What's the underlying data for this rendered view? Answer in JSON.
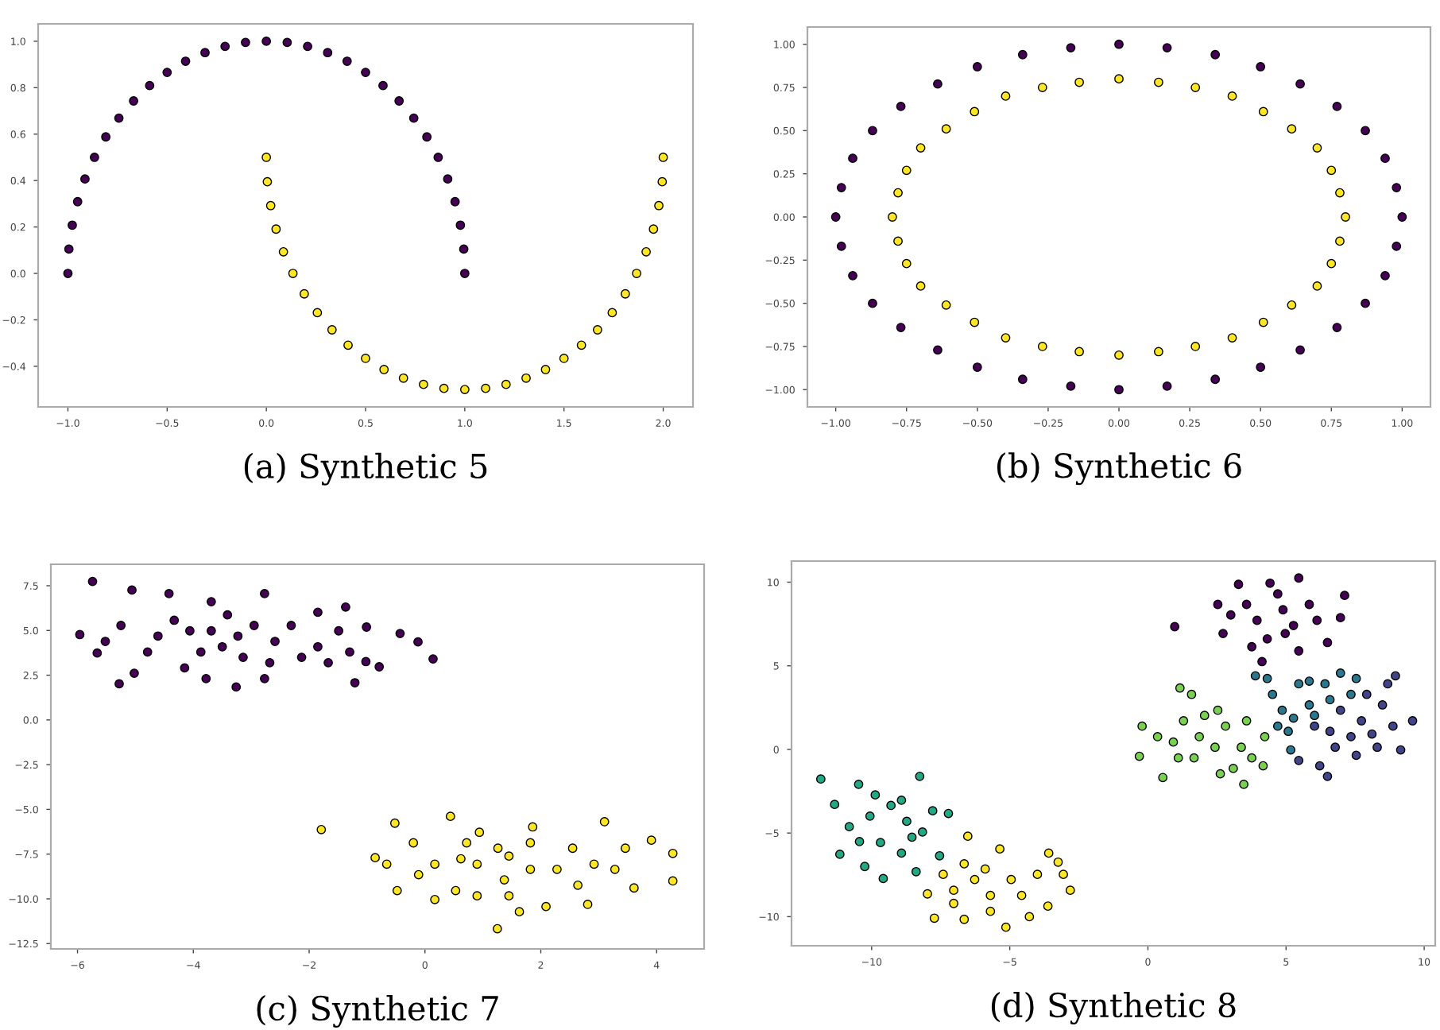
{
  "chart_data": [
    {
      "type": "scatter",
      "title": "(a) Synthetic 5",
      "marker": "circle",
      "grid": false,
      "legend": false,
      "xlim": [
        -1.15,
        2.15
      ],
      "ylim": [
        -0.575,
        1.075
      ],
      "xticks": [
        {
          "value": -1.0,
          "label": "−1.0"
        },
        {
          "value": -0.5,
          "label": "−0.5"
        },
        {
          "value": 0.0,
          "label": "0.0"
        },
        {
          "value": 0.5,
          "label": "0.5"
        },
        {
          "value": 1.0,
          "label": "1.0"
        },
        {
          "value": 1.5,
          "label": "1.5"
        },
        {
          "value": 2.0,
          "label": "2.0"
        }
      ],
      "yticks": [
        {
          "value": -0.4,
          "label": "−0.4"
        },
        {
          "value": -0.2,
          "label": "−0.2"
        },
        {
          "value": 0.0,
          "label": "0.0"
        },
        {
          "value": 0.2,
          "label": "0.2"
        },
        {
          "value": 0.4,
          "label": "0.4"
        },
        {
          "value": 0.6,
          "label": "0.6"
        },
        {
          "value": 0.8,
          "label": "0.8"
        },
        {
          "value": 1.0,
          "label": "1.0"
        }
      ],
      "series": [
        {
          "color": "#440154",
          "x": [
            1,
            0.995,
            0.978,
            0.951,
            0.914,
            0.866,
            0.809,
            0.743,
            0.669,
            0.588,
            0.5,
            0.407,
            0.309,
            0.208,
            0.105,
            0,
            -0.105,
            -0.208,
            -0.309,
            -0.407,
            -0.5,
            -0.588,
            -0.669,
            -0.743,
            -0.809,
            -0.866,
            -0.914,
            -0.951,
            -0.978,
            -0.995,
            -1
          ],
          "values": [
            0,
            0.105,
            0.208,
            0.309,
            0.407,
            0.5,
            0.588,
            0.669,
            0.743,
            0.809,
            0.866,
            0.914,
            0.951,
            0.978,
            0.995,
            1,
            0.995,
            0.978,
            0.951,
            0.914,
            0.866,
            0.809,
            0.743,
            0.669,
            0.588,
            0.5,
            0.407,
            0.309,
            0.208,
            0.105,
            0
          ]
        },
        {
          "color": "#fde725",
          "x": [
            0,
            0.005,
            0.022,
            0.049,
            0.086,
            0.134,
            0.191,
            0.257,
            0.331,
            0.412,
            0.5,
            0.593,
            0.691,
            0.792,
            0.895,
            1,
            1.105,
            1.208,
            1.309,
            1.407,
            1.5,
            1.588,
            1.669,
            1.743,
            1.809,
            1.866,
            1.914,
            1.951,
            1.978,
            1.995,
            2
          ],
          "values": [
            0.5,
            0.395,
            0.292,
            0.191,
            0.093,
            0,
            -0.088,
            -0.169,
            -0.243,
            -0.309,
            -0.366,
            -0.414,
            -0.451,
            -0.478,
            -0.495,
            -0.5,
            -0.495,
            -0.478,
            -0.451,
            -0.414,
            -0.366,
            -0.309,
            -0.243,
            -0.169,
            -0.088,
            0,
            0.093,
            0.191,
            0.292,
            0.395,
            0.5
          ]
        }
      ]
    },
    {
      "type": "scatter",
      "title": "(b) Synthetic 6",
      "marker": "circle",
      "grid": false,
      "legend": false,
      "xlim": [
        -1.1,
        1.1
      ],
      "ylim": [
        -1.1,
        1.1
      ],
      "xticks": [
        {
          "value": -1.0,
          "label": "−1.00"
        },
        {
          "value": -0.75,
          "label": "−0.75"
        },
        {
          "value": -0.5,
          "label": "−0.50"
        },
        {
          "value": -0.25,
          "label": "−0.25"
        },
        {
          "value": 0.0,
          "label": "0.00"
        },
        {
          "value": 0.25,
          "label": "0.25"
        },
        {
          "value": 0.5,
          "label": "0.50"
        },
        {
          "value": 0.75,
          "label": "0.75"
        },
        {
          "value": 1.0,
          "label": "1.00"
        }
      ],
      "yticks": [
        {
          "value": -1.0,
          "label": "−1.00"
        },
        {
          "value": -0.75,
          "label": "−0.75"
        },
        {
          "value": -0.5,
          "label": "−0.50"
        },
        {
          "value": -0.25,
          "label": "−0.25"
        },
        {
          "value": 0.0,
          "label": "0.00"
        },
        {
          "value": 0.25,
          "label": "0.25"
        },
        {
          "value": 0.5,
          "label": "0.50"
        },
        {
          "value": 0.75,
          "label": "0.75"
        },
        {
          "value": 1.0,
          "label": "1.00"
        }
      ],
      "series": [
        {
          "color": "#440154",
          "x": [
            1,
            0.98,
            0.94,
            0.87,
            0.77,
            0.64,
            0.5,
            0.34,
            0.17,
            0,
            -0.17,
            -0.34,
            -0.5,
            -0.64,
            -0.77,
            -0.87,
            -0.94,
            -0.98,
            -1,
            -0.98,
            -0.94,
            -0.87,
            -0.77,
            -0.64,
            -0.5,
            -0.34,
            -0.17,
            0,
            0.17,
            0.34,
            0.5,
            0.64,
            0.77,
            0.87,
            0.94,
            0.98
          ],
          "values": [
            0,
            0.17,
            0.34,
            0.5,
            0.64,
            0.77,
            0.87,
            0.94,
            0.98,
            1,
            0.98,
            0.94,
            0.87,
            0.77,
            0.64,
            0.5,
            0.34,
            0.17,
            0,
            -0.17,
            -0.34,
            -0.5,
            -0.64,
            -0.77,
            -0.87,
            -0.94,
            -0.98,
            -1,
            -0.98,
            -0.94,
            -0.87,
            -0.77,
            -0.64,
            -0.5,
            -0.34,
            -0.17
          ]
        },
        {
          "color": "#fde725",
          "x": [
            0.8,
            0.78,
            0.75,
            0.7,
            0.61,
            0.51,
            0.4,
            0.27,
            0.14,
            0,
            -0.14,
            -0.27,
            -0.4,
            -0.51,
            -0.61,
            -0.7,
            -0.75,
            -0.78,
            -0.8,
            -0.78,
            -0.75,
            -0.7,
            -0.61,
            -0.51,
            -0.4,
            -0.27,
            -0.14,
            0,
            0.14,
            0.27,
            0.4,
            0.51,
            0.61,
            0.7,
            0.75,
            0.78
          ],
          "values": [
            0,
            0.14,
            0.27,
            0.4,
            0.51,
            0.61,
            0.7,
            0.75,
            0.78,
            0.8,
            0.78,
            0.75,
            0.7,
            0.61,
            0.51,
            0.4,
            0.27,
            0.14,
            0,
            -0.14,
            -0.27,
            -0.4,
            -0.51,
            -0.61,
            -0.7,
            -0.75,
            -0.78,
            -0.8,
            -0.78,
            -0.75,
            -0.7,
            -0.61,
            -0.51,
            -0.4,
            -0.27,
            -0.14
          ]
        }
      ]
    },
    {
      "type": "scatter",
      "title": "(c) Synthetic 7",
      "marker": "circle",
      "grid": false,
      "legend": false,
      "xlim": [
        -6.46,
        4.82
      ],
      "ylim": [
        -12.8,
        8.7
      ],
      "xticks": [
        {
          "value": -6,
          "label": "−6"
        },
        {
          "value": -4,
          "label": "−4"
        },
        {
          "value": -2,
          "label": "−2"
        },
        {
          "value": 0,
          "label": "0"
        },
        {
          "value": 2,
          "label": "2"
        },
        {
          "value": 4,
          "label": "4"
        }
      ],
      "yticks": [
        {
          "value": -12.5,
          "label": "−12.5"
        },
        {
          "value": -10,
          "label": "−10.0"
        },
        {
          "value": -7.5,
          "label": "−7.5"
        },
        {
          "value": -5,
          "label": "−5.0"
        },
        {
          "value": -2.5,
          "label": "−2.5"
        },
        {
          "value": 0,
          "label": "0.0"
        },
        {
          "value": 2.5,
          "label": "2.5"
        },
        {
          "value": 5,
          "label": "5.0"
        },
        {
          "value": 7.5,
          "label": "7.5"
        }
      ],
      "series": [
        {
          "color": "#440154",
          "x": [
            -5.74,
            -5.96,
            -5.06,
            -5.28,
            -5.66,
            -4.42,
            -5.02,
            -3.26,
            -2.77,
            -1.37,
            -1.21,
            -1.01,
            -0.79,
            -0.43,
            -0.12,
            0.14,
            -1.02,
            -1.85,
            -3.69,
            -4.15,
            -3.23,
            -3.69,
            -3.5,
            -2.95,
            -2.59,
            -3.87,
            -3.14,
            -2.31,
            -1.85,
            -4.61,
            -4.33,
            -4.79,
            -5.25,
            -5.52,
            -1.49,
            -1.3,
            -2.68,
            -3.41,
            -4.06,
            -2.13,
            -1.67,
            -3.78,
            -2.77
          ],
          "values": [
            7.74,
            4.77,
            7.26,
            2.02,
            3.74,
            7.06,
            2.61,
            1.84,
            7.06,
            6.31,
            2.08,
            5.19,
            2.97,
            4.83,
            4.36,
            3.41,
            3.26,
            6.02,
            6.61,
            2.91,
            4.69,
            4.98,
            4.09,
            5.28,
            4.39,
            3.8,
            3.5,
            5.28,
            4.09,
            4.69,
            5.57,
            3.8,
            5.28,
            4.39,
            4.98,
            3.8,
            3.2,
            5.87,
            4.98,
            3.5,
            3.2,
            2.31,
            2.31
          ]
        },
        {
          "color": "#fde725",
          "x": [
            -1.79,
            -0.86,
            -0.48,
            -0.52,
            0.44,
            1.25,
            0.17,
            2.81,
            3.1,
            4.28,
            4.28,
            3.91,
            3.61,
            1.63,
            2.09,
            1.45,
            0.9,
            1.82,
            2.28,
            0.72,
            1.37,
            2.55,
            2.92,
            0.17,
            -0.2,
            -0.11,
            0.53,
            0.94,
            1.86,
            3.28,
            3.46,
            1.82,
            1.26,
            0.62,
            -0.66,
            2.64,
            1.45,
            0.9
          ],
          "values": [
            -6.13,
            -7.7,
            -9.54,
            -5.77,
            -5.39,
            -11.67,
            -10.04,
            -10.31,
            -5.69,
            -7.46,
            -9.0,
            -6.72,
            -9.39,
            -10.72,
            -10.43,
            -7.61,
            -8.06,
            -6.87,
            -8.35,
            -6.87,
            -8.94,
            -7.17,
            -8.06,
            -8.06,
            -6.87,
            -8.65,
            -9.54,
            -6.28,
            -5.98,
            -8.35,
            -7.17,
            -8.35,
            -7.17,
            -7.76,
            -8.06,
            -9.24,
            -9.83,
            -9.83
          ]
        }
      ]
    },
    {
      "type": "scatter",
      "title": "(d) Synthetic 8",
      "marker": "circle",
      "grid": false,
      "legend": false,
      "xlim": [
        -12.9,
        10.4
      ],
      "ylim": [
        -11.74,
        11.26
      ],
      "xticks": [
        {
          "value": -10,
          "label": "−10"
        },
        {
          "value": -5,
          "label": "−5"
        },
        {
          "value": 0,
          "label": "0"
        },
        {
          "value": 5,
          "label": "5"
        },
        {
          "value": 10,
          "label": "10"
        }
      ],
      "yticks": [
        {
          "value": -10,
          "label": "−10"
        },
        {
          "value": -5,
          "label": "−5"
        },
        {
          "value": 0,
          "label": "0"
        },
        {
          "value": 5,
          "label": "5"
        },
        {
          "value": 10,
          "label": "10"
        }
      ],
      "series": [
        {
          "color": "#440154",
          "x": [
            0.97,
            3.28,
            5.46,
            7.12,
            6.97,
            4.13,
            2.72,
            5.46,
            6.5,
            4.42,
            3.57,
            4.89,
            3.95,
            5.27,
            3.0,
            4.32,
            5.84,
            4.7,
            3.76,
            6.12,
            4.97,
            2.53
          ],
          "values": [
            7.34,
            9.87,
            10.25,
            9.21,
            7.88,
            5.25,
            6.93,
            5.89,
            6.39,
            9.94,
            8.67,
            8.35,
            7.72,
            7.41,
            8.04,
            6.61,
            8.67,
            9.3,
            6.14,
            7.72,
            6.93,
            8.67
          ]
        },
        {
          "color": "#414487",
          "x": [
            9.15,
            9.58,
            6.5,
            6.22,
            7.54,
            8.3,
            8.49,
            8.87,
            7.35,
            6.97,
            7.92,
            5.46,
            6.59,
            7.73,
            8.11,
            8.68,
            8.96,
            6.78,
            6.03
          ],
          "values": [
            -0.03,
            1.71,
            -1.61,
            -0.98,
            -0.35,
            0.13,
            2.66,
            1.39,
            0.76,
            2.34,
            3.29,
            -0.66,
            1.08,
            1.71,
            0.92,
            3.92,
            4.4,
            0.13,
            1.39
          ]
        },
        {
          "color": "#2a788e",
          "x": [
            3.89,
            4.51,
            4.7,
            5.17,
            5.46,
            5.84,
            6.41,
            6.97,
            6.03,
            4.86,
            7.35,
            4.32,
            5.27,
            6.59,
            7.54,
            5.84,
            5.08
          ],
          "values": [
            4.4,
            3.29,
            1.39,
            -0.03,
            3.92,
            2.66,
            3.92,
            4.56,
            2.03,
            2.34,
            3.29,
            4.24,
            1.87,
            2.97,
            4.24,
            4.08,
            1.08
          ]
        },
        {
          "color": "#22a884",
          "x": [
            -11.84,
            -10.47,
            -8.26,
            -11.15,
            -10.25,
            -9.58,
            -8.39,
            -7.22,
            -7.54,
            -11.34,
            -10.81,
            -10.06,
            -9.3,
            -8.73,
            -8.92,
            -9.68,
            -8.92,
            -8.16,
            -10.44,
            -7.79,
            -9.87,
            -8.54
          ],
          "values": [
            -1.77,
            -2.09,
            -1.61,
            -6.27,
            -7.0,
            -7.72,
            -7.31,
            -3.83,
            -6.36,
            -3.29,
            -4.62,
            -3.99,
            -3.35,
            -4.3,
            -3.04,
            -5.57,
            -6.2,
            -4.94,
            -5.51,
            -3.67,
            -2.72,
            -5.25
          ]
        },
        {
          "color": "#7ad151",
          "x": [
            -0.31,
            -0.21,
            0.54,
            1.16,
            1.58,
            3.47,
            4.17,
            4.23,
            2.62,
            1.67,
            0.92,
            1.29,
            2.05,
            2.81,
            3.38,
            2.43,
            1.86,
            1.1,
            3.57,
            3.76,
            0.35,
            2.53,
            3.09
          ],
          "values": [
            -0.41,
            1.39,
            -1.68,
            3.67,
            3.29,
            -2.09,
            -0.98,
            0.76,
            -1.46,
            -0.51,
            0.44,
            1.71,
            2.03,
            1.39,
            0.13,
            0.13,
            0.76,
            -0.51,
            1.71,
            -0.51,
            0.76,
            2.34,
            -1.14
          ]
        },
        {
          "color": "#fde725",
          "x": [
            -7.98,
            -7.73,
            -6.65,
            -5.14,
            -4.29,
            -2.81,
            -3.06,
            -3.25,
            -3.59,
            -6.52,
            -5.36,
            -7.41,
            -7.03,
            -6.27,
            -5.7,
            -4.95,
            -4.57,
            -4.0,
            -3.62,
            -5.89,
            -6.65,
            -7.03,
            -5.7
          ],
          "values": [
            -8.64,
            -10.09,
            -10.16,
            -10.63,
            -10.0,
            -8.42,
            -7.47,
            -6.74,
            -6.2,
            -5.19,
            -5.95,
            -7.47,
            -8.42,
            -7.78,
            -8.73,
            -7.78,
            -8.73,
            -7.47,
            -9.37,
            -7.15,
            -6.84,
            -9.21,
            -9.68
          ]
        }
      ]
    }
  ]
}
